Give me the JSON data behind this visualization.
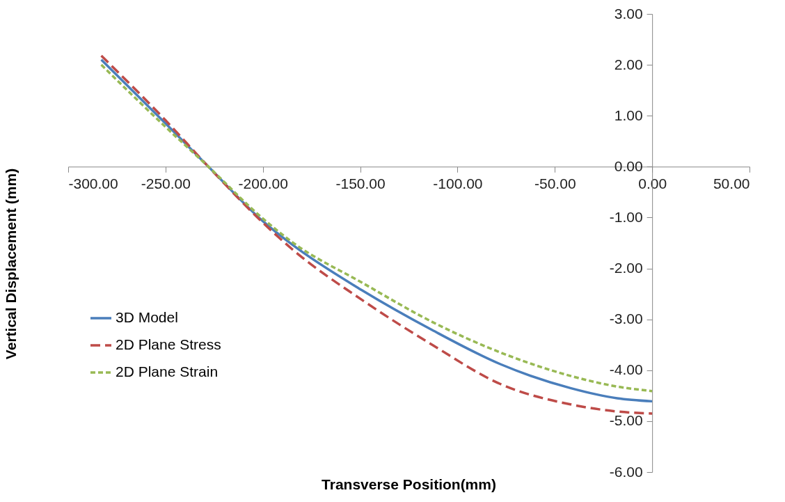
{
  "chart_data": {
    "type": "line",
    "xlabel": "Transverse Position(mm)",
    "ylabel": "Vertical Displacement (mm)",
    "x": [
      -283,
      -250,
      -228,
      -200,
      -185,
      -149,
      -113,
      -78,
      -42,
      -18,
      0
    ],
    "series": [
      {
        "name": "3D Model",
        "color": "#4a7ebb",
        "line_style": "solid",
        "values": [
          2.1,
          0.85,
          0,
          -1.07,
          -1.53,
          -2.43,
          -3.21,
          -3.88,
          -4.35,
          -4.55,
          -4.61
        ]
      },
      {
        "name": "2D Plane Stress",
        "color": "#be4b48",
        "line_style": "dashed",
        "values": [
          2.18,
          0.91,
          0,
          -1.1,
          -1.62,
          -2.62,
          -3.5,
          -4.27,
          -4.67,
          -4.81,
          -4.85
        ]
      },
      {
        "name": "2D Plane Strain",
        "color": "#98b954",
        "line_style": "dotted",
        "values": [
          2.0,
          0.78,
          0,
          -1.02,
          -1.48,
          -2.28,
          -3.05,
          -3.65,
          -4.11,
          -4.32,
          -4.41
        ]
      }
    ],
    "xlim": [
      -300,
      50
    ],
    "xticks": [
      {
        "value": -300,
        "label": "-300.00"
      },
      {
        "value": -250,
        "label": "-250.00"
      },
      {
        "value": -200,
        "label": "-200.00"
      },
      {
        "value": -150,
        "label": "-150.00"
      },
      {
        "value": -100,
        "label": "-100.00"
      },
      {
        "value": -50,
        "label": "-50.00"
      },
      {
        "value": 0,
        "label": "0.00"
      },
      {
        "value": 50,
        "label": "50.00"
      }
    ],
    "ylim": [
      -6,
      3
    ],
    "yticks": [
      {
        "value": -6,
        "label": "-6.00"
      },
      {
        "value": -5,
        "label": "-5.00"
      },
      {
        "value": -4,
        "label": "-4.00"
      },
      {
        "value": -3,
        "label": "-3.00"
      },
      {
        "value": -2,
        "label": "-2.00"
      },
      {
        "value": -1,
        "label": "-1.00"
      },
      {
        "value": 0,
        "label": "0.00"
      },
      {
        "value": 1,
        "label": "1.00"
      },
      {
        "value": 2,
        "label": "2.00"
      },
      {
        "value": 3,
        "label": "3.00"
      }
    ],
    "grid": false,
    "legend": "left",
    "marker": "none"
  }
}
